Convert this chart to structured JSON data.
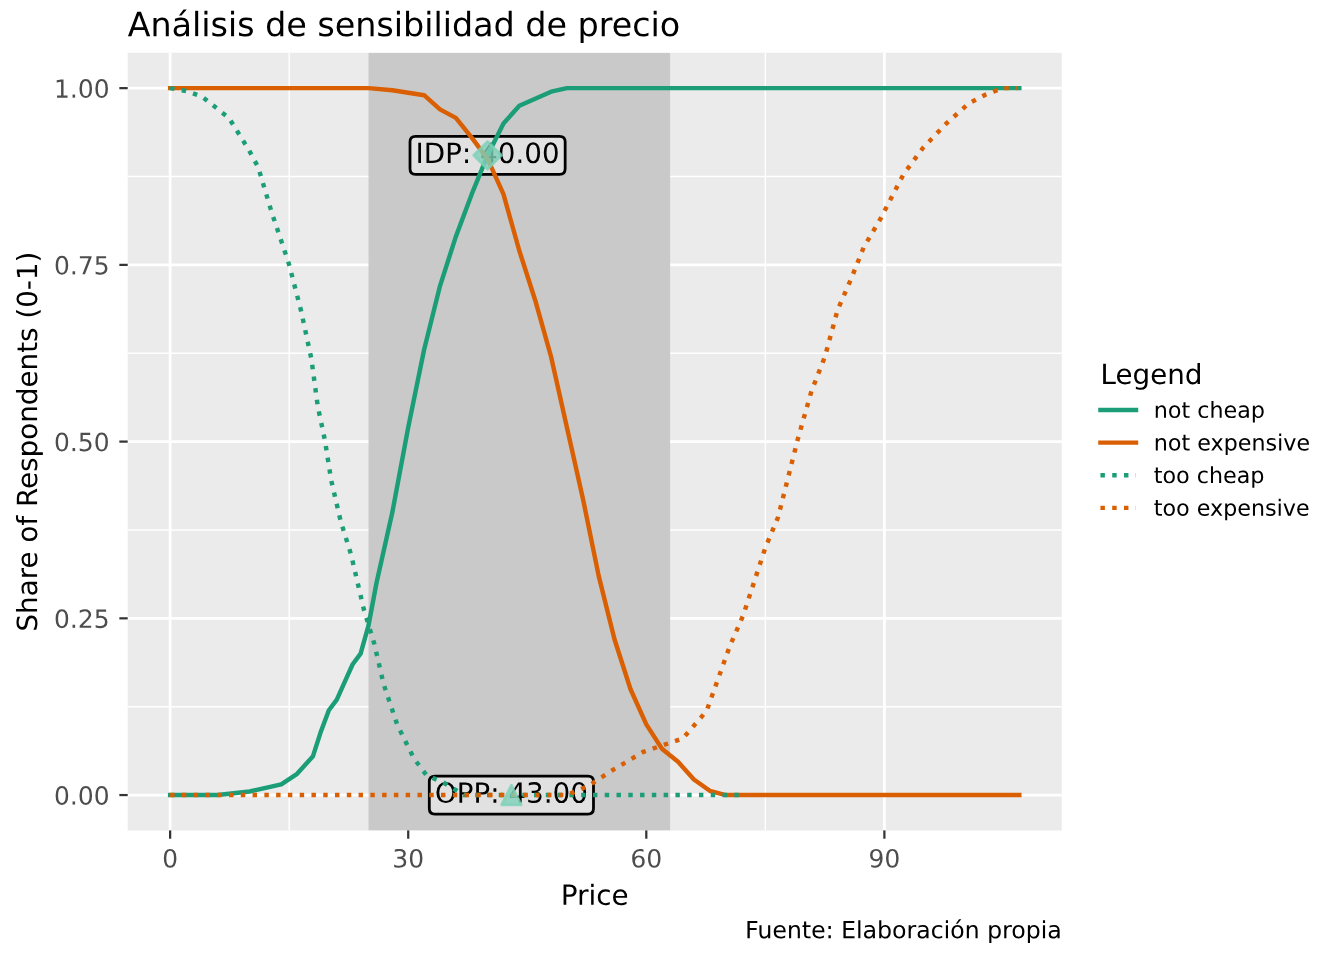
{
  "chart_data": {
    "type": "line",
    "title": "Análisis de sensibilidad de precio",
    "xlabel": "Price",
    "ylabel": "Share of Respondents (0-1)",
    "legend_title": "Legend",
    "series": [
      {
        "name": "not cheap",
        "color": "#1b9e77",
        "line_style": "solid",
        "x": [
          0,
          6,
          10,
          14,
          16,
          18,
          19,
          20,
          21,
          22,
          23,
          24,
          25,
          26,
          28,
          30,
          32,
          34,
          36,
          38,
          40,
          42,
          44,
          46,
          48,
          50,
          107
        ],
        "values": [
          0,
          0,
          0.005,
          0.015,
          0.03,
          0.055,
          0.09,
          0.12,
          0.135,
          0.16,
          0.185,
          0.2,
          0.24,
          0.3,
          0.4,
          0.52,
          0.63,
          0.72,
          0.79,
          0.85,
          0.905,
          0.95,
          0.975,
          0.985,
          0.995,
          1,
          1
        ]
      },
      {
        "name": "not expensive",
        "color": "#d95f02",
        "line_style": "solid",
        "x": [
          0,
          25,
          28,
          32,
          34,
          36,
          38,
          40,
          42,
          44,
          46,
          48,
          50,
          52,
          54,
          56,
          58,
          60,
          62,
          64,
          66,
          68,
          70,
          107
        ],
        "values": [
          1,
          1,
          0.997,
          0.99,
          0.97,
          0.958,
          0.93,
          0.9,
          0.85,
          0.77,
          0.7,
          0.62,
          0.52,
          0.42,
          0.31,
          0.22,
          0.15,
          0.1,
          0.065,
          0.047,
          0.022,
          0.006,
          0,
          0
        ]
      },
      {
        "name": "too cheap",
        "color": "#1b9e77",
        "line_style": "dotted",
        "x": [
          0,
          2,
          4,
          7.4,
          9.9,
          11.1,
          12.8,
          14.3,
          15,
          16.5,
          17.8,
          18.6,
          19.5,
          20.3,
          21.5,
          22.8,
          24.4,
          25.7,
          26.9,
          28.6,
          30.7,
          32.3,
          34.4,
          37,
          72
        ],
        "values": [
          1,
          0.996,
          0.988,
          0.958,
          0.913,
          0.888,
          0.824,
          0.774,
          0.75,
          0.685,
          0.617,
          0.55,
          0.502,
          0.445,
          0.387,
          0.34,
          0.263,
          0.215,
          0.157,
          0.1,
          0.052,
          0.028,
          0.018,
          0,
          0
        ]
      },
      {
        "name": "too expensive",
        "color": "#d95f02",
        "line_style": "dotted",
        "x": [
          0,
          50,
          52.7,
          56,
          59.6,
          64.6,
          67.6,
          70.5,
          72.2,
          75,
          76.6,
          79.1,
          80.8,
          82.5,
          84.1,
          85.8,
          87.4,
          89.5,
          92.4,
          94.9,
          97.8,
          100.7,
          102.8,
          104.9,
          106.8
        ],
        "values": [
          0,
          0,
          0.013,
          0.037,
          0.061,
          0.08,
          0.119,
          0.21,
          0.254,
          0.35,
          0.393,
          0.504,
          0.571,
          0.62,
          0.686,
          0.73,
          0.775,
          0.815,
          0.878,
          0.916,
          0.95,
          0.979,
          0.991,
          1,
          1
        ]
      },
      {
        "type": "scatter",
        "marker": "diamond",
        "color": "#7fd1b9",
        "x": [
          40
        ],
        "values": [
          0.905
        ]
      },
      {
        "type": "scatter",
        "marker": "triangle",
        "color": "#7fd1b9",
        "x": [
          43
        ],
        "values": [
          0
        ]
      }
    ],
    "bands": [
      {
        "axis": "x",
        "from": 25,
        "to": 63,
        "color": "#c9c9c9"
      }
    ],
    "annotations": [
      {
        "text": "IDP: 40.00",
        "x": 40,
        "y": 0.905
      },
      {
        "text": "OPP: 43.00",
        "x": 43,
        "y": 0
      },
      "Fuente: Elaboración propia"
    ],
    "xlim": [
      -5.35,
      112.35
    ],
    "ylim": [
      -0.05,
      1.05
    ],
    "xticks": [
      0,
      30,
      60,
      90
    ],
    "yticks": [
      {
        "value": 0,
        "label": "0.00"
      },
      {
        "value": 0.25,
        "label": "0.25"
      },
      {
        "value": 0.5,
        "label": "0.50"
      },
      {
        "value": 0.75,
        "label": "0.75"
      },
      {
        "value": 1,
        "label": "1.00"
      }
    ],
    "grid": true,
    "legend": "right"
  }
}
